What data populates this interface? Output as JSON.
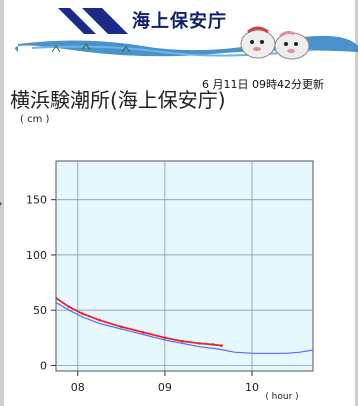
{
  "agency": {
    "name": "海上保安庁"
  },
  "update_time": "6 月11日 09時42分更新",
  "station_title": "横浜験潮所(海上保安庁)",
  "colors": {
    "plot_background": "#e6f8fd",
    "observed_line": "#e8232a",
    "predicted_line": "#5b6cf2",
    "grid": "#7fa0a0",
    "logo_blue": "#1a2a8a"
  },
  "chart_data": {
    "type": "line",
    "y_unit_label": "( cm )",
    "x_unit_label": "( hour )",
    "x_ticks": [
      "08",
      "09",
      "10"
    ],
    "y_ticks": [
      "0",
      "50",
      "100",
      "150"
    ],
    "xlim": [
      7.75,
      10.7
    ],
    "ylim": [
      -5,
      185
    ],
    "grid": true,
    "series": [
      {
        "role": "observed",
        "x": [
          7.75,
          7.9,
          8.05,
          8.25,
          8.5,
          8.75,
          9.0,
          9.2,
          9.4,
          9.55,
          9.65
        ],
        "y": [
          61,
          53,
          47,
          41,
          35,
          30,
          25,
          22,
          20,
          19,
          18
        ]
      },
      {
        "role": "predicted",
        "x": [
          7.75,
          7.9,
          8.05,
          8.25,
          8.5,
          8.75,
          9.0,
          9.2,
          9.4,
          9.6,
          9.8,
          10.0,
          10.2,
          10.4,
          10.55,
          10.7
        ],
        "y": [
          57,
          50,
          44,
          38,
          33,
          28,
          23,
          20,
          17,
          15,
          12,
          11,
          11,
          11,
          12,
          14
        ]
      }
    ]
  }
}
